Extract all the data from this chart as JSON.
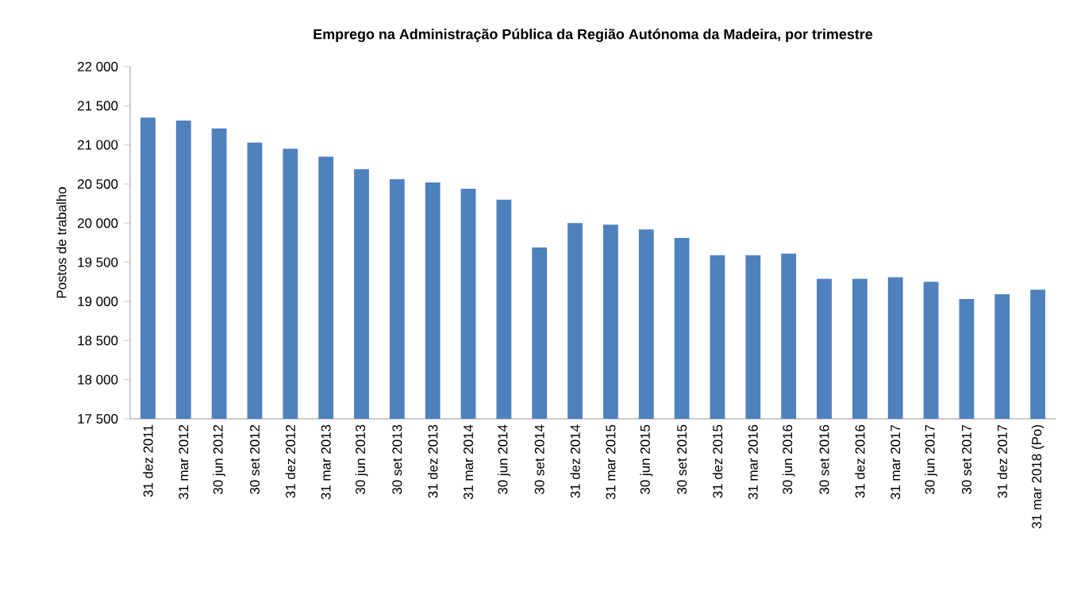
{
  "chart_data": {
    "type": "bar",
    "title": "Emprego na Administração Pública da Região Autónoma da Madeira, por trimestre",
    "ylabel": "Postos de trabalho",
    "categories": [
      "31 dez 2011",
      "31 mar 2012",
      "30 jun 2012",
      "30 set 2012",
      "31 dez 2012",
      "31 mar 2013",
      "30 jun 2013",
      "30 set 2013",
      "31 dez 2013",
      "31 mar 2014",
      "30 jun 2014",
      "30 set 2014",
      "31 dez 2014",
      "31 mar 2015",
      "30 jun 2015",
      "30 set 2015",
      "31 dez 2015",
      "31 mar 2016",
      "30 jun 2016",
      "30 set 2016",
      "31 dez 2016",
      "31 mar 2017",
      "30 jun 2017",
      "30 set 2017",
      "31 dez 2017",
      "31 mar 2018 (Po)"
    ],
    "values": [
      21350,
      21310,
      21210,
      21030,
      20950,
      20850,
      20690,
      20560,
      20520,
      20440,
      20300,
      19690,
      20000,
      19980,
      19920,
      19810,
      19590,
      19590,
      19610,
      19290,
      19290,
      19310,
      19250,
      19030,
      19090,
      19150
    ],
    "color": "#4f81bd",
    "ylim": [
      17500,
      22000
    ],
    "yticks": [
      {
        "value": 17500,
        "label": "17 500"
      },
      {
        "value": 18000,
        "label": "18 000"
      },
      {
        "value": 18500,
        "label": "18 500"
      },
      {
        "value": 19000,
        "label": "19 000"
      },
      {
        "value": 19500,
        "label": "19 500"
      },
      {
        "value": 20000,
        "label": "20 000"
      },
      {
        "value": 20500,
        "label": "20 500"
      },
      {
        "value": 21000,
        "label": "21 000"
      },
      {
        "value": 21500,
        "label": "21 500"
      },
      {
        "value": 22000,
        "label": "22 000"
      }
    ],
    "grid": false
  }
}
